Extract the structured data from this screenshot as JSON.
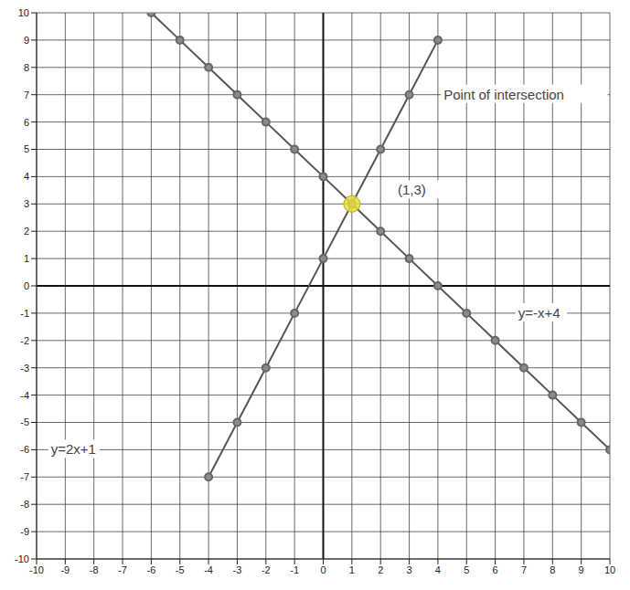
{
  "chart_data": {
    "type": "line",
    "xlim": [
      -10,
      10
    ],
    "ylim": [
      -10,
      10
    ],
    "xticks": [
      -10,
      -9,
      -8,
      -7,
      -6,
      -5,
      -4,
      -3,
      -2,
      -1,
      0,
      1,
      2,
      3,
      4,
      5,
      6,
      7,
      8,
      9,
      10
    ],
    "yticks": [
      -10,
      -9,
      -8,
      -7,
      -6,
      -5,
      -4,
      -3,
      -2,
      -1,
      0,
      1,
      2,
      3,
      4,
      5,
      6,
      7,
      8,
      9,
      10
    ],
    "grid": true,
    "marker": "circle",
    "series": [
      {
        "name": "y=2x+1",
        "color": "#555555",
        "x": [
          -4,
          -3,
          -2,
          -1,
          0,
          1,
          2,
          3,
          4
        ],
        "values": [
          -7,
          -5,
          -3,
          -1,
          1,
          3,
          5,
          7,
          9
        ]
      },
      {
        "name": "y=-x+4",
        "color": "#555555",
        "x": [
          -6,
          -5,
          -4,
          -3,
          -2,
          -1,
          0,
          1,
          2,
          3,
          4,
          5,
          6,
          7,
          8,
          9,
          10
        ],
        "values": [
          10,
          9,
          8,
          7,
          6,
          5,
          4,
          3,
          2,
          1,
          0,
          -1,
          -2,
          -3,
          -4,
          -5,
          -6
        ]
      }
    ],
    "highlight": {
      "x": 1,
      "y": 3,
      "color": "#e6dc3c"
    },
    "annotations": [
      {
        "text": "Point of intersection",
        "x": 4.2,
        "y": 7
      },
      {
        "text": "(1,3)",
        "x": 2.6,
        "y": 3.5
      },
      {
        "text": "y=2x+1",
        "x": -9.5,
        "y": -6
      },
      {
        "text": "y=-x+4",
        "x": 6.8,
        "y": -1
      }
    ]
  }
}
